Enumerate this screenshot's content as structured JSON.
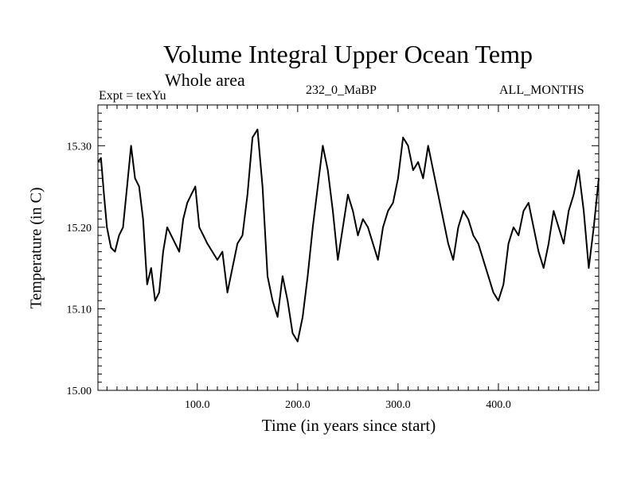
{
  "header": {
    "title": "Volume Integral Upper Ocean Temp",
    "subtitle": "Whole area",
    "expt": "Expt = texYu",
    "run": "232_0_MaBP",
    "months": "ALL_MONTHS"
  },
  "chart_data": {
    "type": "line",
    "title": "Volume Integral Upper Ocean Temp",
    "subtitle": "Whole area",
    "xlabel": "Time (in years since start)",
    "ylabel": "Temperature (in C)",
    "xlim": [
      1,
      500
    ],
    "ylim": [
      15.0,
      15.35
    ],
    "xticks": [
      100.0,
      200.0,
      300.0,
      400.0
    ],
    "xtick_labels": [
      "100.0",
      "200.0",
      "300.0",
      "400.0"
    ],
    "yticks": [
      15.0,
      15.1,
      15.2,
      15.3
    ],
    "ytick_labels": [
      "15.00",
      "15.10",
      "15.20",
      "15.30"
    ],
    "grid": false,
    "series": [
      {
        "color": "#000000",
        "x": [
          1,
          4,
          7,
          10,
          14,
          18,
          22,
          26,
          30,
          34,
          38,
          42,
          46,
          50,
          54,
          58,
          62,
          66,
          70,
          74,
          78,
          82,
          86,
          90,
          94,
          98,
          102,
          106,
          110,
          115,
          120,
          125,
          130,
          135,
          140,
          145,
          150,
          155,
          160,
          165,
          170,
          175,
          180,
          185,
          190,
          195,
          200,
          205,
          210,
          215,
          220,
          225,
          230,
          235,
          240,
          245,
          250,
          255,
          260,
          265,
          270,
          275,
          280,
          285,
          290,
          295,
          300,
          305,
          310,
          315,
          320,
          325,
          330,
          335,
          340,
          345,
          350,
          355,
          360,
          365,
          370,
          375,
          380,
          385,
          390,
          395,
          400,
          405,
          410,
          415,
          420,
          425,
          430,
          435,
          440,
          445,
          450,
          455,
          460,
          465,
          470,
          475,
          480,
          485,
          490,
          495,
          500
        ],
        "y": [
          15.28,
          15.285,
          15.24,
          15.2,
          15.175,
          15.17,
          15.19,
          15.2,
          15.25,
          15.3,
          15.26,
          15.25,
          15.21,
          15.13,
          15.15,
          15.11,
          15.12,
          15.17,
          15.2,
          15.19,
          15.18,
          15.17,
          15.21,
          15.23,
          15.24,
          15.25,
          15.2,
          15.19,
          15.18,
          15.17,
          15.16,
          15.17,
          15.12,
          15.15,
          15.18,
          15.19,
          15.24,
          15.31,
          15.32,
          15.25,
          15.14,
          15.11,
          15.09,
          15.14,
          15.11,
          15.07,
          15.06,
          15.09,
          15.14,
          15.2,
          15.25,
          15.3,
          15.27,
          15.22,
          15.16,
          15.2,
          15.24,
          15.22,
          15.19,
          15.21,
          15.2,
          15.18,
          15.16,
          15.2,
          15.22,
          15.23,
          15.26,
          15.31,
          15.3,
          15.27,
          15.28,
          15.26,
          15.3,
          15.27,
          15.24,
          15.21,
          15.18,
          15.16,
          15.2,
          15.22,
          15.21,
          15.19,
          15.18,
          15.16,
          15.14,
          15.12,
          15.11,
          15.13,
          15.18,
          15.2,
          15.19,
          15.22,
          15.23,
          15.2,
          15.17,
          15.15,
          15.18,
          15.22,
          15.2,
          15.18,
          15.22,
          15.24,
          15.27,
          15.22,
          15.15,
          15.2,
          15.26
        ]
      }
    ]
  }
}
